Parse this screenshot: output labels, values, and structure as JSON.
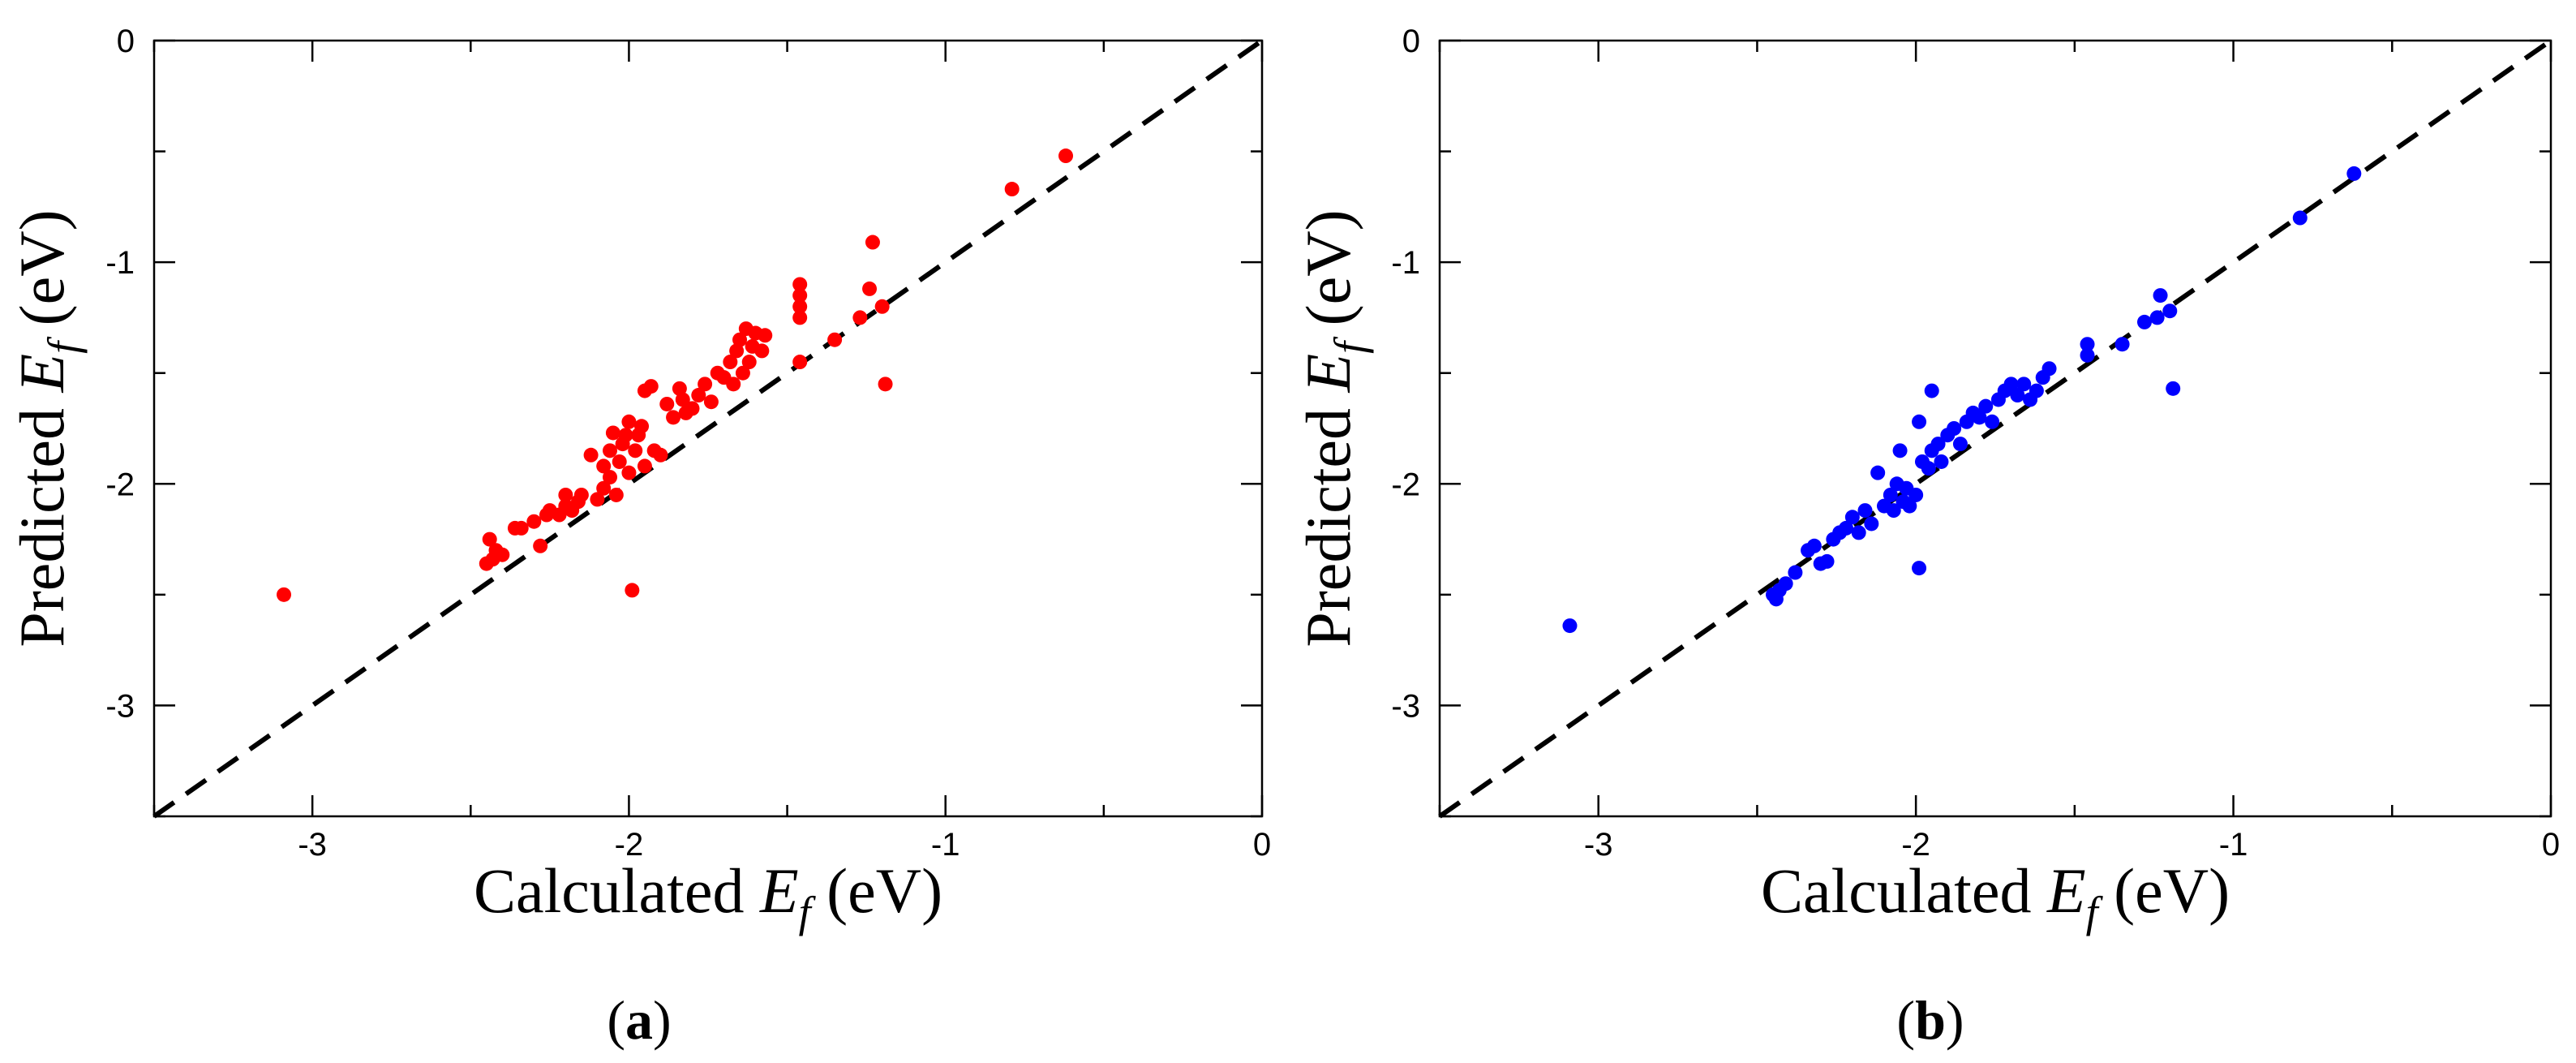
{
  "chart_data": [
    {
      "type": "scatter",
      "panel_label": "a",
      "xlabel": "Calculated E_f (eV)",
      "ylabel": "Predicted E_f (eV)",
      "axis_title_x": {
        "prefix": "Calculated ",
        "var": "E",
        "sub": "f",
        "suffix": " (eV)"
      },
      "axis_title_y": {
        "prefix": "Predicted ",
        "var": "E",
        "sub": "f",
        "suffix": " (eV)"
      },
      "xlim": [
        -3.5,
        0
      ],
      "ylim": [
        -3.5,
        0
      ],
      "xticks": [
        -3,
        -2,
        -1,
        0
      ],
      "yticks": [
        0,
        -1,
        -2,
        -3
      ],
      "xtick_labels": [
        "-3",
        "-2",
        "-1",
        "0"
      ],
      "ytick_labels": [
        "0",
        "-1",
        "-2",
        "-3"
      ],
      "diagonal": true,
      "marker_color": "#ff0000",
      "points": [
        [
          -3.09,
          -2.5
        ],
        [
          -2.45,
          -2.36
        ],
        [
          -2.44,
          -2.25
        ],
        [
          -2.43,
          -2.34
        ],
        [
          -2.42,
          -2.3
        ],
        [
          -2.4,
          -2.32
        ],
        [
          -2.36,
          -2.2
        ],
        [
          -2.34,
          -2.2
        ],
        [
          -2.3,
          -2.17
        ],
        [
          -2.28,
          -2.28
        ],
        [
          -2.26,
          -2.14
        ],
        [
          -2.25,
          -2.12
        ],
        [
          -2.22,
          -2.14
        ],
        [
          -2.2,
          -2.1
        ],
        [
          -2.2,
          -2.05
        ],
        [
          -2.18,
          -2.12
        ],
        [
          -2.16,
          -2.08
        ],
        [
          -2.15,
          -2.05
        ],
        [
          -2.12,
          -1.87
        ],
        [
          -2.1,
          -2.07
        ],
        [
          -2.08,
          -2.02
        ],
        [
          -2.08,
          -1.92
        ],
        [
          -2.06,
          -1.97
        ],
        [
          -2.06,
          -1.85
        ],
        [
          -2.05,
          -1.77
        ],
        [
          -2.04,
          -2.05
        ],
        [
          -2.03,
          -1.9
        ],
        [
          -2.02,
          -1.82
        ],
        [
          -2.01,
          -1.78
        ],
        [
          -2.0,
          -1.95
        ],
        [
          -2.0,
          -1.72
        ],
        [
          -1.99,
          -2.48
        ],
        [
          -1.98,
          -1.85
        ],
        [
          -1.97,
          -1.78
        ],
        [
          -1.96,
          -1.74
        ],
        [
          -1.95,
          -1.92
        ],
        [
          -1.95,
          -1.58
        ],
        [
          -1.93,
          -1.56
        ],
        [
          -1.92,
          -1.85
        ],
        [
          -1.9,
          -1.87
        ],
        [
          -1.88,
          -1.64
        ],
        [
          -1.86,
          -1.7
        ],
        [
          -1.84,
          -1.57
        ],
        [
          -1.83,
          -1.62
        ],
        [
          -1.82,
          -1.68
        ],
        [
          -1.8,
          -1.66
        ],
        [
          -1.78,
          -1.6
        ],
        [
          -1.76,
          -1.55
        ],
        [
          -1.74,
          -1.63
        ],
        [
          -1.72,
          -1.5
        ],
        [
          -1.7,
          -1.52
        ],
        [
          -1.68,
          -1.45
        ],
        [
          -1.67,
          -1.55
        ],
        [
          -1.66,
          -1.4
        ],
        [
          -1.65,
          -1.35
        ],
        [
          -1.64,
          -1.5
        ],
        [
          -1.63,
          -1.3
        ],
        [
          -1.62,
          -1.45
        ],
        [
          -1.61,
          -1.38
        ],
        [
          -1.6,
          -1.32
        ],
        [
          -1.58,
          -1.4
        ],
        [
          -1.57,
          -1.33
        ],
        [
          -1.46,
          -1.1
        ],
        [
          -1.46,
          -1.15
        ],
        [
          -1.46,
          -1.2
        ],
        [
          -1.46,
          -1.25
        ],
        [
          -1.46,
          -1.45
        ],
        [
          -1.35,
          -1.35
        ],
        [
          -1.27,
          -1.25
        ],
        [
          -1.24,
          -1.12
        ],
        [
          -1.23,
          -0.91
        ],
        [
          -1.2,
          -1.2
        ],
        [
          -1.19,
          -1.55
        ],
        [
          -0.79,
          -0.67
        ],
        [
          -0.62,
          -0.52
        ]
      ]
    },
    {
      "type": "scatter",
      "panel_label": "b",
      "xlabel": "Calculated E_f (eV)",
      "ylabel": "Predicted E_f (eV)",
      "axis_title_x": {
        "prefix": "Calculated ",
        "var": "E",
        "sub": "f",
        "suffix": " (eV)"
      },
      "axis_title_y": {
        "prefix": "Predicted ",
        "var": "E",
        "sub": "f",
        "suffix": " (eV)"
      },
      "xlim": [
        -3.5,
        0
      ],
      "ylim": [
        -3.5,
        0
      ],
      "xticks": [
        -3,
        -2,
        -1,
        0
      ],
      "yticks": [
        0,
        -1,
        -2,
        -3
      ],
      "xtick_labels": [
        "-3",
        "-2",
        "-1",
        "0"
      ],
      "ytick_labels": [
        "0",
        "-1",
        "-2",
        "-3"
      ],
      "diagonal": true,
      "marker_color": "#0000ff",
      "points": [
        [
          -3.09,
          -2.64
        ],
        [
          -2.45,
          -2.5
        ],
        [
          -2.44,
          -2.52
        ],
        [
          -2.43,
          -2.48
        ],
        [
          -2.41,
          -2.45
        ],
        [
          -2.38,
          -2.4
        ],
        [
          -2.34,
          -2.3
        ],
        [
          -2.32,
          -2.28
        ],
        [
          -2.3,
          -2.36
        ],
        [
          -2.28,
          -2.35
        ],
        [
          -2.26,
          -2.25
        ],
        [
          -2.24,
          -2.22
        ],
        [
          -2.22,
          -2.2
        ],
        [
          -2.2,
          -2.15
        ],
        [
          -2.18,
          -2.22
        ],
        [
          -2.16,
          -2.12
        ],
        [
          -2.14,
          -2.18
        ],
        [
          -2.12,
          -1.95
        ],
        [
          -2.1,
          -2.1
        ],
        [
          -2.08,
          -2.05
        ],
        [
          -2.07,
          -2.12
        ],
        [
          -2.06,
          -2.0
        ],
        [
          -2.05,
          -1.85
        ],
        [
          -2.04,
          -2.08
        ],
        [
          -2.03,
          -2.02
        ],
        [
          -2.02,
          -2.1
        ],
        [
          -2.0,
          -2.05
        ],
        [
          -1.99,
          -1.72
        ],
        [
          -1.99,
          -2.38
        ],
        [
          -1.98,
          -1.9
        ],
        [
          -1.96,
          -1.93
        ],
        [
          -1.95,
          -1.85
        ],
        [
          -1.95,
          -1.58
        ],
        [
          -1.93,
          -1.82
        ],
        [
          -1.92,
          -1.9
        ],
        [
          -1.9,
          -1.78
        ],
        [
          -1.88,
          -1.75
        ],
        [
          -1.86,
          -1.82
        ],
        [
          -1.84,
          -1.72
        ],
        [
          -1.82,
          -1.68
        ],
        [
          -1.8,
          -1.7
        ],
        [
          -1.78,
          -1.65
        ],
        [
          -1.76,
          -1.72
        ],
        [
          -1.74,
          -1.62
        ],
        [
          -1.72,
          -1.58
        ],
        [
          -1.7,
          -1.55
        ],
        [
          -1.68,
          -1.6
        ],
        [
          -1.66,
          -1.55
        ],
        [
          -1.64,
          -1.62
        ],
        [
          -1.62,
          -1.58
        ],
        [
          -1.6,
          -1.52
        ],
        [
          -1.58,
          -1.48
        ],
        [
          -1.46,
          -1.37
        ],
        [
          -1.46,
          -1.42
        ],
        [
          -1.35,
          -1.37
        ],
        [
          -1.28,
          -1.27
        ],
        [
          -1.24,
          -1.25
        ],
        [
          -1.23,
          -1.15
        ],
        [
          -1.2,
          -1.22
        ],
        [
          -1.19,
          -1.57
        ],
        [
          -0.79,
          -0.8
        ],
        [
          -0.62,
          -0.6
        ]
      ]
    }
  ]
}
